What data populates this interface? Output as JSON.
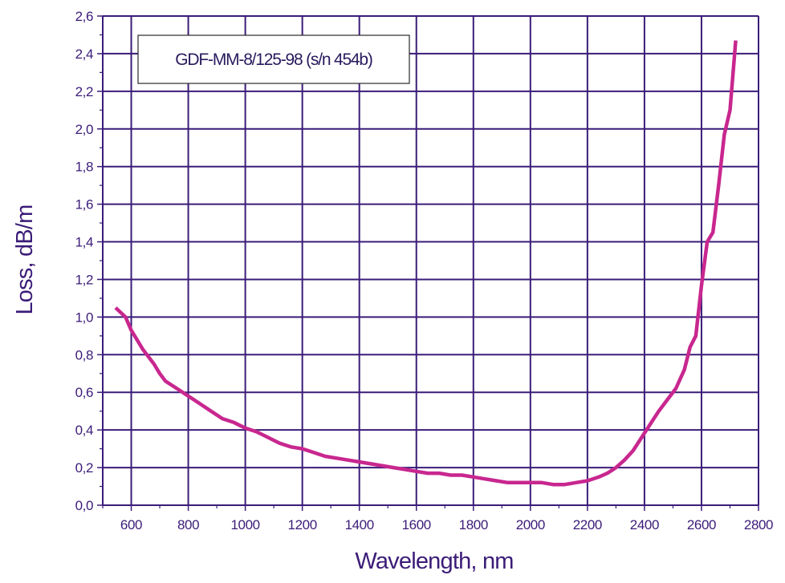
{
  "colors": {
    "axis": "#3b1c78",
    "grid": "#3b1c78",
    "curve": "#c8278f",
    "text": "#3b1c78"
  },
  "chart_data": {
    "type": "line",
    "title": "",
    "xlabel": "Wavelength, nm",
    "ylabel": "Loss, dB/m",
    "xlim": [
      500,
      2800
    ],
    "ylim": [
      0.0,
      2.6
    ],
    "x_ticks": [
      600,
      800,
      1000,
      1200,
      1400,
      1600,
      1800,
      2000,
      2200,
      2400,
      2600,
      2800
    ],
    "x_tick_labels": [
      "600",
      "800",
      "1000",
      "1200",
      "1400",
      "1600",
      "1800",
      "2000",
      "2200",
      "2400",
      "2600",
      "2800"
    ],
    "y_ticks": [
      0.0,
      0.2,
      0.4,
      0.6,
      0.8,
      1.0,
      1.2,
      1.4,
      1.6,
      1.8,
      2.0,
      2.2,
      2.4,
      2.6
    ],
    "y_tick_labels": [
      "0,0",
      "0,2",
      "0,4",
      "0,6",
      "0,8",
      "1,0",
      "1,2",
      "1,4",
      "1,6",
      "1,8",
      "2,0",
      "2,2",
      "2,4",
      "2,6"
    ],
    "grid": true,
    "legend": {
      "text": "GDF-MM-8/125-98 (s/n 454b)",
      "placement": "top-left"
    },
    "series": [
      {
        "x": [
          545,
          580,
          600,
          620,
          640,
          660,
          680,
          700,
          720,
          760,
          800,
          840,
          880,
          920,
          960,
          1000,
          1040,
          1080,
          1120,
          1160,
          1200,
          1240,
          1280,
          1320,
          1360,
          1400,
          1440,
          1480,
          1520,
          1560,
          1600,
          1640,
          1680,
          1720,
          1760,
          1800,
          1840,
          1880,
          1920,
          1960,
          2000,
          2040,
          2080,
          2120,
          2160,
          2200,
          2240,
          2270,
          2300,
          2330,
          2360,
          2390,
          2420,
          2450,
          2480,
          2510,
          2540,
          2560,
          2580,
          2600,
          2620,
          2640,
          2660,
          2680,
          2700,
          2720
        ],
        "y": [
          1.05,
          1.0,
          0.93,
          0.88,
          0.83,
          0.79,
          0.75,
          0.7,
          0.66,
          0.62,
          0.58,
          0.54,
          0.5,
          0.46,
          0.44,
          0.41,
          0.39,
          0.36,
          0.33,
          0.31,
          0.3,
          0.28,
          0.26,
          0.25,
          0.24,
          0.23,
          0.22,
          0.21,
          0.2,
          0.19,
          0.18,
          0.17,
          0.17,
          0.16,
          0.16,
          0.15,
          0.14,
          0.13,
          0.12,
          0.12,
          0.12,
          0.12,
          0.11,
          0.11,
          0.12,
          0.13,
          0.15,
          0.17,
          0.2,
          0.24,
          0.29,
          0.36,
          0.43,
          0.5,
          0.56,
          0.62,
          0.72,
          0.84,
          0.9,
          1.17,
          1.4,
          1.45,
          1.7,
          1.97,
          2.1,
          2.47
        ]
      }
    ]
  }
}
